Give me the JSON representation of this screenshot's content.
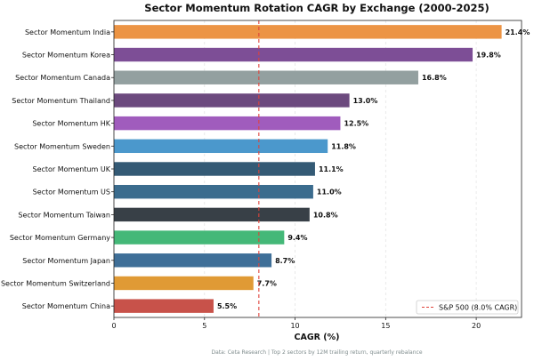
{
  "chart_data": {
    "type": "bar",
    "orientation": "horizontal",
    "title": "Sector Momentum Rotation CAGR by Exchange (2000-2025)",
    "xlabel": "CAGR (%)",
    "ylabel": "",
    "xlim": [
      0,
      22.5
    ],
    "xticks": [
      0,
      5,
      10,
      15,
      20
    ],
    "grid": "x, dashed",
    "categories": [
      "Sector Momentum India",
      "Sector Momentum Korea",
      "Sector Momentum Canada",
      "Sector Momentum Thailand",
      "Sector Momentum HK",
      "Sector Momentum Sweden",
      "Sector Momentum UK",
      "Sector Momentum US",
      "Sector Momentum Taiwan",
      "Sector Momentum Germany",
      "Sector Momentum Japan",
      "Sector Momentum Switzerland",
      "Sector Momentum China"
    ],
    "values": [
      21.4,
      19.8,
      16.8,
      13.0,
      12.5,
      11.8,
      11.1,
      11.0,
      10.8,
      9.4,
      8.7,
      7.7,
      5.5
    ],
    "value_labels": [
      "21.4%",
      "19.8%",
      "16.8%",
      "13.0%",
      "12.5%",
      "11.8%",
      "11.1%",
      "11.0%",
      "10.8%",
      "9.4%",
      "8.7%",
      "7.7%",
      "5.5%"
    ],
    "colors": [
      "#ec9444",
      "#7d4e96",
      "#93a0a0",
      "#6c4a7e",
      "#a05cbd",
      "#4b98cc",
      "#345a75",
      "#3b6c8e",
      "#384047",
      "#44b878",
      "#3f6f98",
      "#e09a35",
      "#c8524a"
    ],
    "reference_line": {
      "value": 8.0,
      "label": "S&P 500 (8.0% CAGR)",
      "color": "#e0433a"
    },
    "legend_position": "bottom-right",
    "footer": "Data: Ceta Research | Top 2 sectors by 12M trailing return, quarterly rebalance"
  }
}
